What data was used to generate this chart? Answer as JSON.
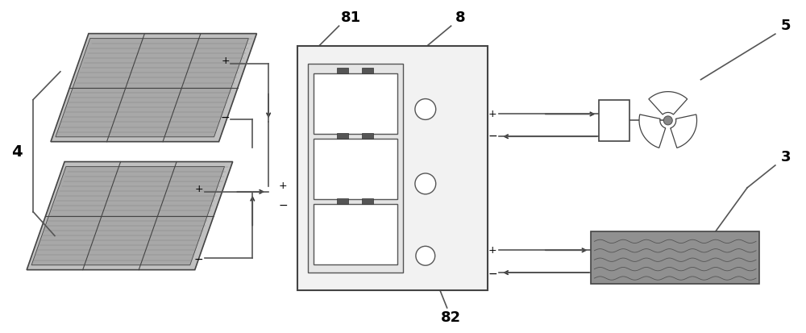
{
  "bg_color": "#ffffff",
  "line_color": "#555555",
  "text_color": "#000000",
  "label_4": "4",
  "label_8": "8",
  "label_81": "81",
  "label_82": "82",
  "label_5": "5",
  "label_3": "3",
  "figsize": [
    10.0,
    4.13
  ],
  "dpi": 100
}
